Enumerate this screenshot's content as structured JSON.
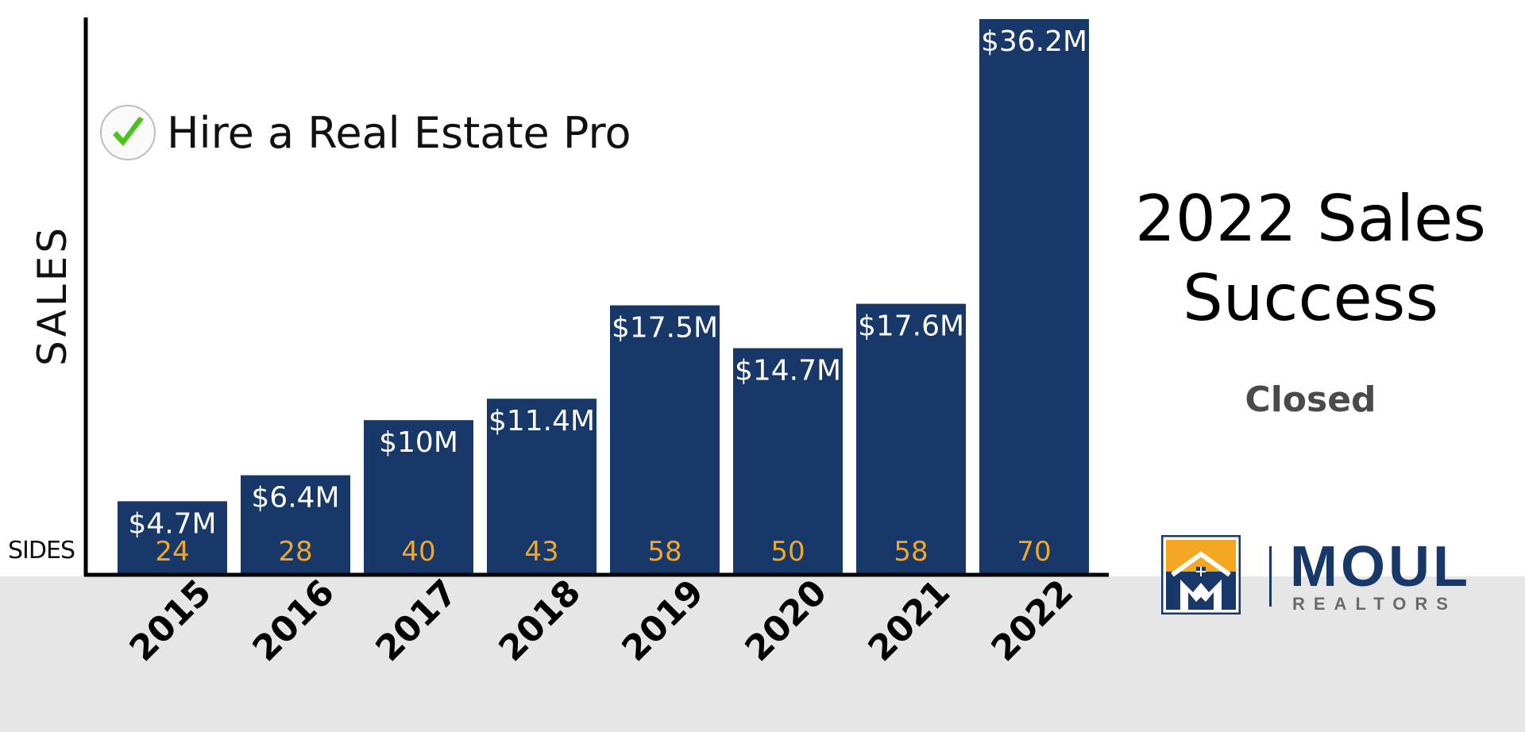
{
  "badge": {
    "text": "Hire a Real Estate Pro",
    "icon": "checkmark-icon",
    "check_color": "#4cc21c"
  },
  "headline": {
    "line1": "2022 Sales",
    "line2": "Success"
  },
  "subhead": "Closed",
  "logo": {
    "word": "MOUL",
    "sub": "REALTORS",
    "navy": "#173868",
    "orange": "#f5a623"
  },
  "chart_data": {
    "type": "bar",
    "ylabel": "SALES",
    "row_label": "SIDES",
    "categories": [
      "2015",
      "2016",
      "2017",
      "2018",
      "2019",
      "2020",
      "2021",
      "2022"
    ],
    "values": [
      4.7,
      6.4,
      10,
      11.4,
      17.5,
      14.7,
      17.6,
      36.2
    ],
    "value_labels": [
      "$4.7M",
      "$6.4M",
      "$10M",
      "$11.4M",
      "$17.5M",
      "$14.7M",
      "$17.6M",
      "$36.2M"
    ],
    "sides": [
      24,
      28,
      40,
      43,
      58,
      50,
      58,
      70
    ],
    "ylim": [
      0,
      36.2
    ],
    "bar_color": "#173868",
    "sides_color": "#f5a623",
    "grid": false,
    "legend": "none"
  }
}
